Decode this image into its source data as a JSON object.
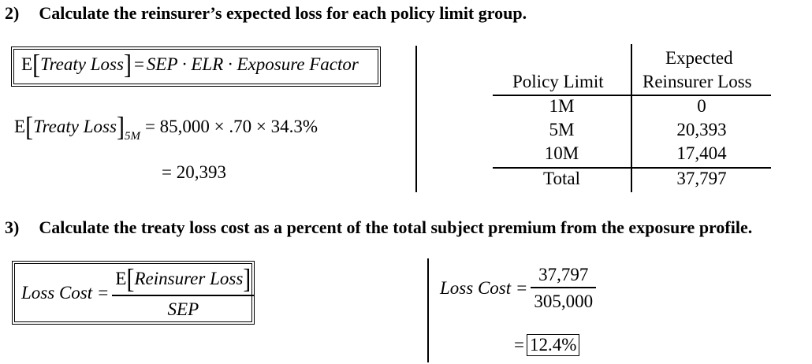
{
  "section2": {
    "number": "2)",
    "title": "Calculate the reinsurer’s expected loss for each policy limit group.",
    "formula": {
      "lhs_e": "E",
      "lhs_term": "Treaty Loss",
      "equals": "=",
      "rhs": "SEP · ELR · Exposure Factor"
    },
    "calc": {
      "lhs_e": "E",
      "lhs_term": "Treaty Loss",
      "subscript": "5M",
      "rhs": "= 85,000 × .70 × 34.3%",
      "result": "= 20,393"
    },
    "table": {
      "col1_header": "Policy Limit",
      "col2_header_line1": "Expected",
      "col2_header_line2": "Reinsurer Loss",
      "rows": [
        {
          "limit": "1M",
          "loss": "0"
        },
        {
          "limit": "5M",
          "loss": "20,393"
        },
        {
          "limit": "10M",
          "loss": "17,404"
        }
      ],
      "total_label": "Total",
      "total_value": "37,797"
    }
  },
  "section3": {
    "number": "3)",
    "title": "Calculate the treaty loss cost as a percent of the total subject premium from the exposure profile.",
    "formula": {
      "lhs": "Loss Cost =",
      "num_e": "E",
      "num_term": "Reinsurer Loss",
      "den": "SEP"
    },
    "calc": {
      "lhs": "Loss Cost =",
      "num": "37,797",
      "den": "305,000",
      "result_eq": "=",
      "result": "12.4%"
    }
  }
}
